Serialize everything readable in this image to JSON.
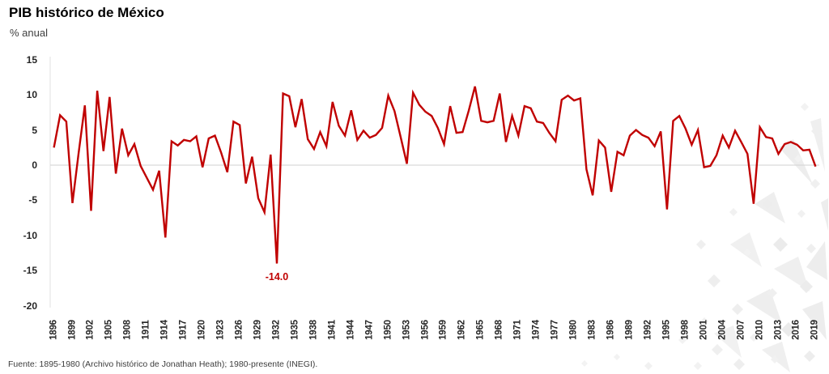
{
  "header": {
    "title": "PIB histórico de México",
    "subtitle": "% anual"
  },
  "footer": {
    "source": "Fuente: 1895-1980 (Archivo histórico de Jonathan Heath); 1980-presente (INEGI)."
  },
  "colors": {
    "line": "#C00000",
    "annotation": "#C00000",
    "gridline": "#D9D9D9",
    "axis_line": "#E2E2E2",
    "axis_text": "#262626",
    "watermark": "#EFEFEF"
  },
  "annotation": {
    "text": "-14.0",
    "year": 1932,
    "value": -14.0
  },
  "chart_data": {
    "type": "line",
    "title": "PIB histórico de México",
    "xlabel": "",
    "ylabel": "% anual",
    "ylim": [
      -20,
      15
    ],
    "grid": "zero-line-only",
    "legend": "none",
    "x_first_year": 1896,
    "x_last_year": 2019,
    "x_tick_step": 3,
    "x_ticks": [
      "1896",
      "1899",
      "1902",
      "1905",
      "1908",
      "1911",
      "1914",
      "1917",
      "1920",
      "1923",
      "1926",
      "1929",
      "1932",
      "1935",
      "1938",
      "1941",
      "1944",
      "1947",
      "1950",
      "1953",
      "1956",
      "1959",
      "1962",
      "1965",
      "1968",
      "1971",
      "1974",
      "1977",
      "1980",
      "1983",
      "1986",
      "1989",
      "1992",
      "1995",
      "1998",
      "2001",
      "2004",
      "2007",
      "2010",
      "2013",
      "2016",
      "2019"
    ],
    "y_ticks": [
      "15",
      "10",
      "5",
      "0",
      "-5",
      "-10",
      "-15",
      "-20"
    ],
    "series": [
      {
        "name": "PIB anual (%)",
        "color": "#C00000",
        "values": [
          2.5,
          7.1,
          6.2,
          -5.4,
          1.8,
          8.5,
          -6.5,
          10.6,
          2.0,
          9.7,
          -1.2,
          5.2,
          1.4,
          3.0,
          -0.1,
          -1.8,
          -3.5,
          -0.8,
          -10.3,
          3.4,
          2.8,
          3.6,
          3.4,
          4.1,
          -0.3,
          3.8,
          4.2,
          1.8,
          -1.0,
          6.2,
          5.7,
          -2.6,
          1.2,
          -4.7,
          -6.7,
          1.5,
          -14.0,
          10.2,
          9.8,
          5.4,
          9.4,
          3.7,
          2.3,
          4.7,
          2.7,
          9.0,
          5.6,
          4.2,
          7.8,
          3.6,
          4.9,
          3.9,
          4.3,
          5.3,
          9.9,
          7.7,
          4.0,
          0.2,
          10.3,
          8.6,
          7.6,
          7.0,
          5.3,
          3.0,
          8.4,
          4.6,
          4.7,
          7.8,
          11.2,
          6.3,
          6.1,
          6.3,
          10.2,
          3.3,
          7.0,
          4.2,
          8.4,
          8.1,
          6.2,
          6.0,
          4.6,
          3.4,
          9.3,
          9.9,
          9.2,
          9.5,
          -0.6,
          -4.3,
          3.5,
          2.5,
          -3.8,
          1.9,
          1.4,
          4.2,
          5.0,
          4.3,
          3.9,
          2.7,
          4.8,
          -6.3,
          6.3,
          7.0,
          5.2,
          2.9,
          5.0,
          -0.3,
          -0.1,
          1.4,
          4.2,
          2.5,
          4.9,
          3.3,
          1.6,
          -5.5,
          5.4,
          4.0,
          3.8,
          1.6,
          3.0,
          3.3,
          2.9,
          2.1,
          2.2,
          -0.2
        ]
      }
    ]
  }
}
